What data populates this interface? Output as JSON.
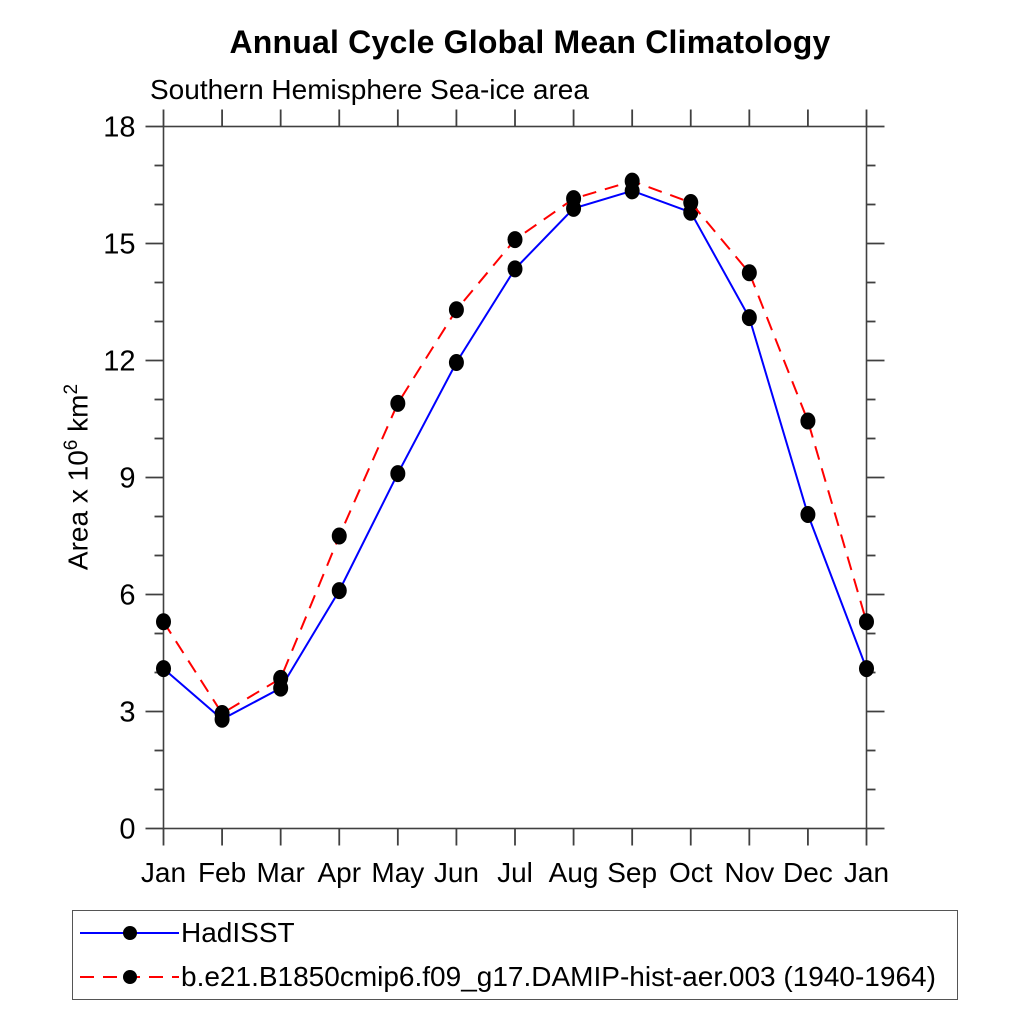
{
  "header": {
    "title": "Annual Cycle Global Mean Climatology",
    "subtitle": "Southern Hemisphere Sea-ice area"
  },
  "chart_data": {
    "type": "line",
    "title": "Annual Cycle Global Mean Climatology",
    "subtitle": "Southern Hemisphere Sea-ice area",
    "categories": [
      "Jan",
      "Feb",
      "Mar",
      "Apr",
      "May",
      "Jun",
      "Jul",
      "Aug",
      "Sep",
      "Oct",
      "Nov",
      "Dec",
      "Jan"
    ],
    "ylabel": "Area x 10^6 km^2",
    "ylabel_parts": {
      "base": "Area x 10",
      "sup1": "6",
      "mid": " km",
      "sup2": "2"
    },
    "ylim": [
      0,
      18
    ],
    "ytick_major": [
      0,
      3,
      6,
      9,
      12,
      15,
      18
    ],
    "ytick_minor_interval": 1,
    "grid": false,
    "legend_position": "bottom-left",
    "axis_color": "#404040",
    "series": [
      {
        "name": "HadISST",
        "color": "#0000ff",
        "line_style": "solid",
        "marker": "circle",
        "marker_color": "#000000",
        "values": [
          4.1,
          2.8,
          3.6,
          6.1,
          9.1,
          11.95,
          14.35,
          15.9,
          16.35,
          15.8,
          13.1,
          8.05,
          4.1
        ]
      },
      {
        "name": "b.e21.B1850cmip6.f09_g17.DAMIP-hist-aer.003 (1940-1964)",
        "color": "#ff0000",
        "line_style": "dashed",
        "marker": "circle",
        "marker_color": "#000000",
        "values": [
          5.3,
          2.95,
          3.85,
          7.5,
          10.9,
          13.3,
          15.1,
          16.15,
          16.6,
          16.05,
          14.25,
          10.45,
          5.3
        ]
      }
    ]
  }
}
